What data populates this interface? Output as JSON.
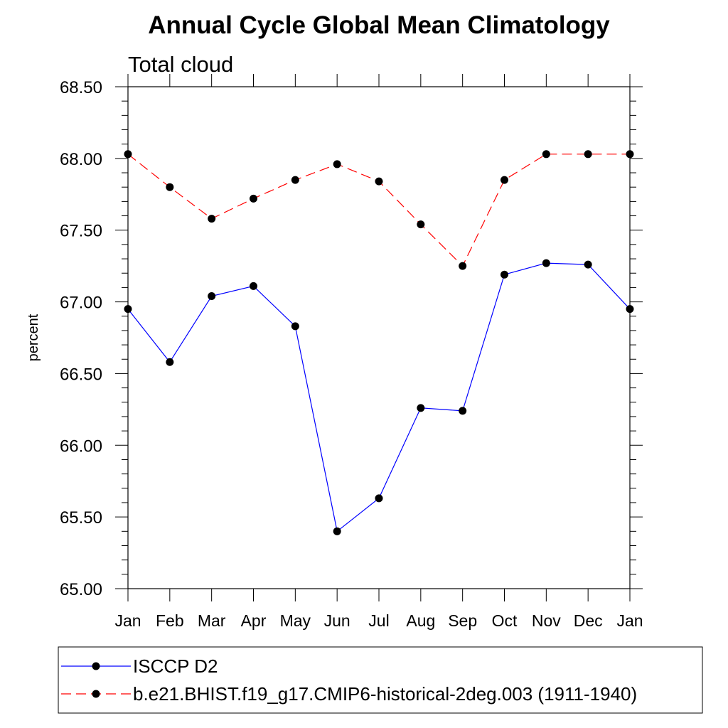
{
  "chart_data": {
    "type": "line",
    "title": "Annual Cycle Global Mean Climatology",
    "subtitle": "Total cloud",
    "ylabel": "percent",
    "xlabel": "",
    "categories": [
      "Jan",
      "Feb",
      "Mar",
      "Apr",
      "May",
      "Jun",
      "Jul",
      "Aug",
      "Sep",
      "Oct",
      "Nov",
      "Dec",
      "Jan"
    ],
    "ylim": [
      65.0,
      68.5
    ],
    "yticks": [
      "65.00",
      "65.50",
      "66.00",
      "66.50",
      "67.00",
      "67.50",
      "68.00",
      "68.50"
    ],
    "grid": false,
    "legend_position": "bottom",
    "series": [
      {
        "name": "ISCCP D2",
        "color": "#0000ff",
        "line_style": "solid",
        "marker": "filled-circle",
        "values": [
          66.95,
          66.58,
          67.04,
          67.11,
          66.83,
          65.4,
          65.63,
          66.26,
          66.24,
          67.19,
          67.27,
          67.26,
          66.95
        ]
      },
      {
        "name": "b.e21.BHIST.f19_g17.CMIP6-historical-2deg.003 (1911-1940)",
        "color": "#ff0000",
        "line_style": "dashed",
        "marker": "filled-circle",
        "values": [
          68.03,
          67.8,
          67.58,
          67.72,
          67.85,
          67.96,
          67.84,
          67.54,
          67.25,
          67.85,
          68.03,
          68.03,
          68.03
        ]
      }
    ]
  }
}
